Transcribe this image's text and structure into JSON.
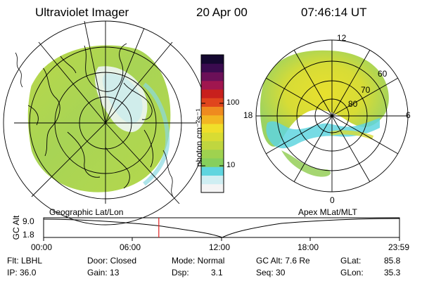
{
  "header": {
    "instrument": "Ultraviolet Imager",
    "date": "20 Apr 00",
    "time": "07:46:14 UT"
  },
  "left_panel": {
    "label": "Geographic Lat/Lon"
  },
  "right_panel": {
    "label": "Apex MLat/MLT",
    "mlt_labels": [
      "12",
      "18",
      "6",
      "0"
    ],
    "lat_labels": [
      "60",
      "70",
      "80"
    ]
  },
  "colorbar": {
    "label": "photon cm⁻²s⁻¹",
    "ticks": [
      "100",
      "10"
    ],
    "colors": [
      "#f4f4f4",
      "#cfeef2",
      "#5fd5df",
      "#86cf5c",
      "#9fd24f",
      "#c0d63f",
      "#d8dc33",
      "#f0df2a",
      "#f3b622",
      "#ef8a1f",
      "#e0451d",
      "#c8201d",
      "#a0164f",
      "#6b1058",
      "#3a0b4f",
      "#140830"
    ]
  },
  "altitude_plot": {
    "ylabel": "GC Alt",
    "ymax": "9.0",
    "ymin": "1.8",
    "x_ticks": [
      "00:00",
      "06:00",
      "12:00",
      "18:00",
      "23:59"
    ],
    "current_hours": 7.77
  },
  "info": {
    "flt": "Flt: LBHL",
    "ip": "IP: 36.0",
    "door": "Door: Closed",
    "gain": "Gain: 13",
    "mode": "Mode: Normal",
    "dsp_label": "Dsp:",
    "dsp_value": "3.1",
    "gcalt": "GC Alt: 7.6 Re",
    "seq": "Seq: 30",
    "glat_label": "GLat:",
    "glat_value": "85.8",
    "glon_label": "GLon:",
    "glon_value": "35.3"
  }
}
